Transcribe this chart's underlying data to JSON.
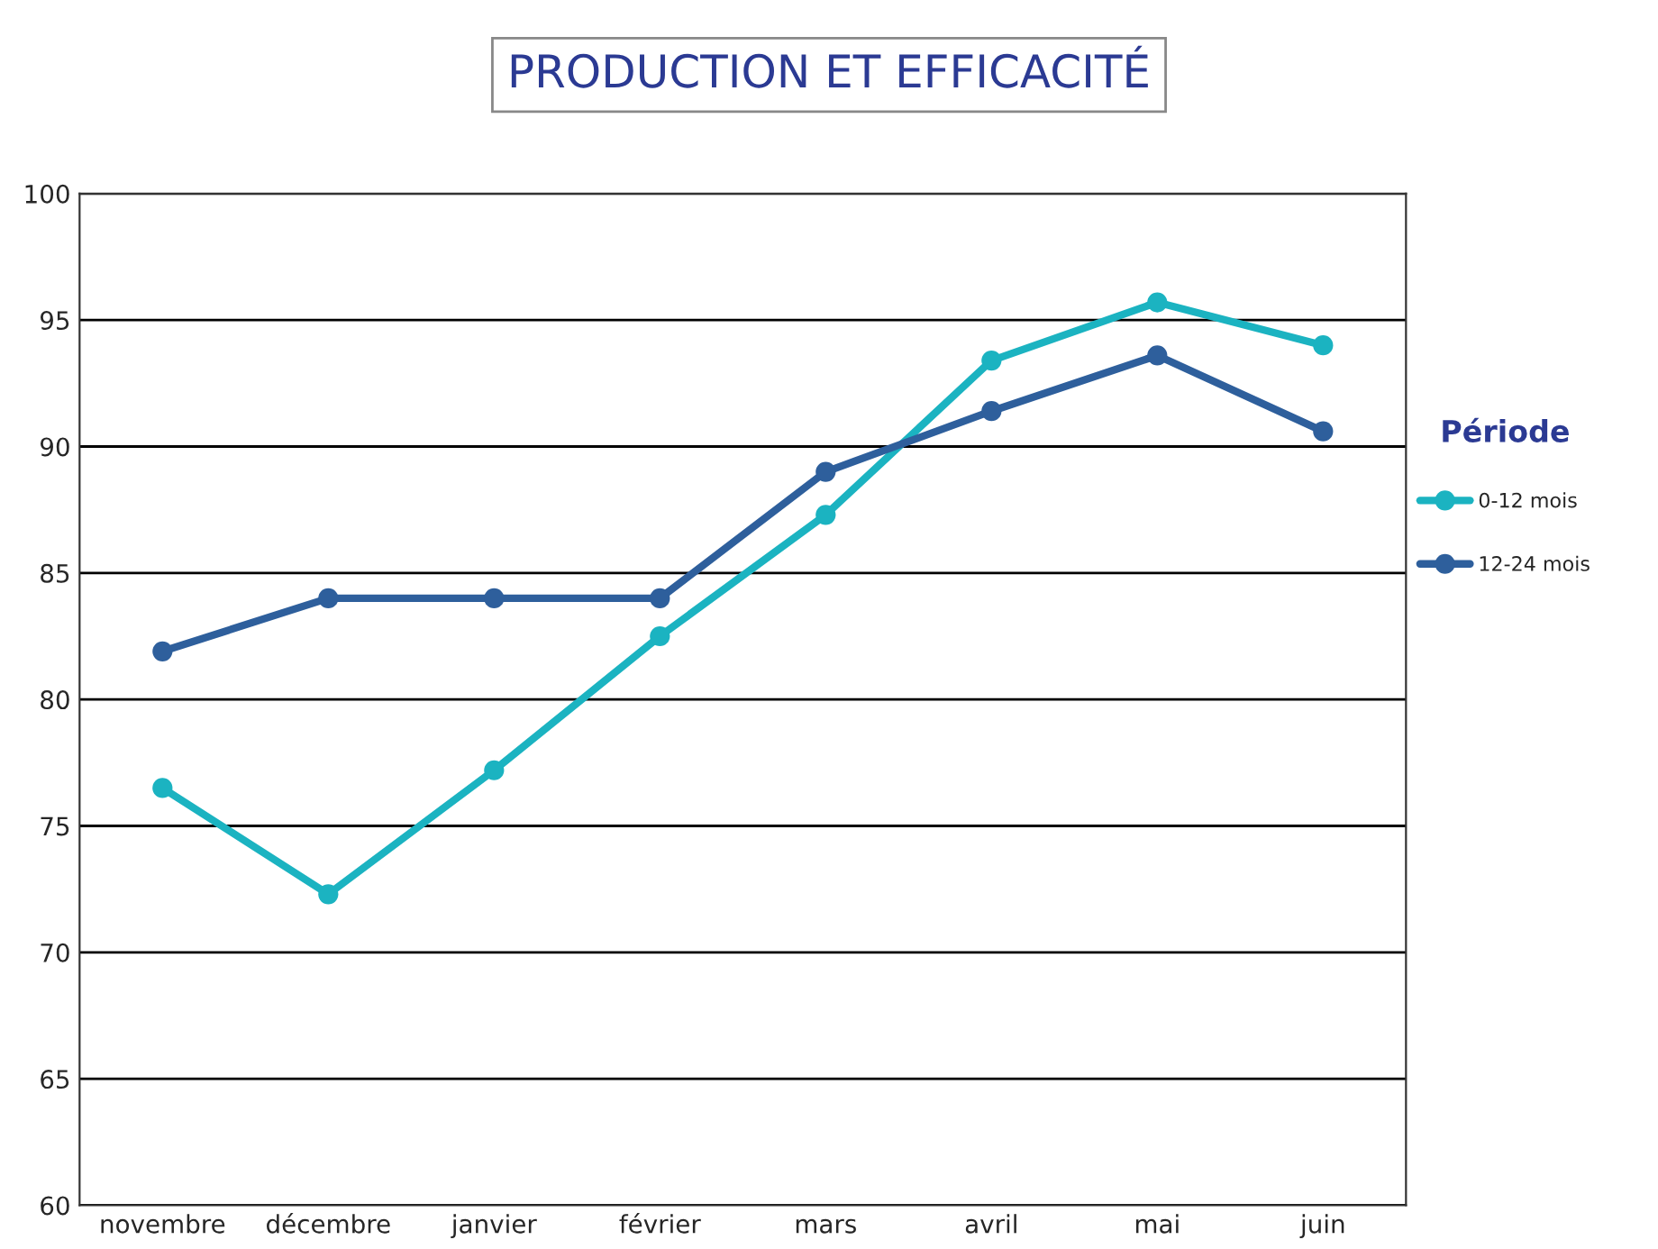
{
  "chart_data": {
    "type": "line",
    "title": "PRODUCTION ET EFFICACITÉ",
    "legend_title": "Période",
    "categories": [
      "novembre",
      "décembre",
      "janvier",
      "février",
      "mars",
      "avril",
      "mai",
      "juin"
    ],
    "series": [
      {
        "name": "0-12 mois",
        "color": "#1bb3c1",
        "values": [
          76.5,
          72.3,
          77.2,
          82.5,
          87.3,
          93.4,
          95.7,
          94.0
        ]
      },
      {
        "name": "12-24 mois",
        "color": "#2e5f9c",
        "values": [
          81.9,
          84.0,
          84.0,
          84.0,
          89.0,
          91.4,
          93.6,
          90.6
        ]
      }
    ],
    "ylim": [
      60,
      100
    ],
    "yticks": [
      60,
      65,
      70,
      75,
      80,
      85,
      90,
      95,
      100
    ],
    "grid": "y",
    "legend": "right",
    "marker": "circle",
    "line_style": "solid"
  }
}
